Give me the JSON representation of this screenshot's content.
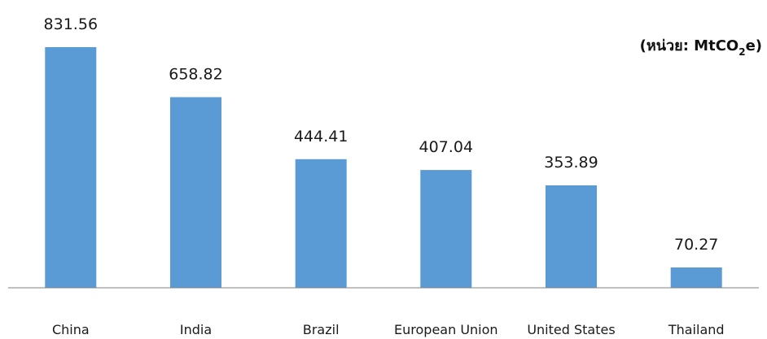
{
  "chart_data": {
    "type": "bar",
    "categories": [
      "China",
      "India",
      "Brazil",
      "European Union",
      "United States",
      "Thailand"
    ],
    "values": [
      831.56,
      658.82,
      444.41,
      407.04,
      353.89,
      70.27
    ],
    "value_labels": [
      "831.56",
      "658.82",
      "444.41",
      "407.04",
      "353.89",
      "70.27"
    ],
    "unit_label": {
      "prefix": "(หน่วย: MtCO",
      "subscript": "2",
      "suffix": "e)"
    },
    "ylim": [
      0,
      900
    ],
    "grid": false,
    "legend": "none",
    "bar_color": "#5b9bd5",
    "axis_color": "#808080"
  }
}
